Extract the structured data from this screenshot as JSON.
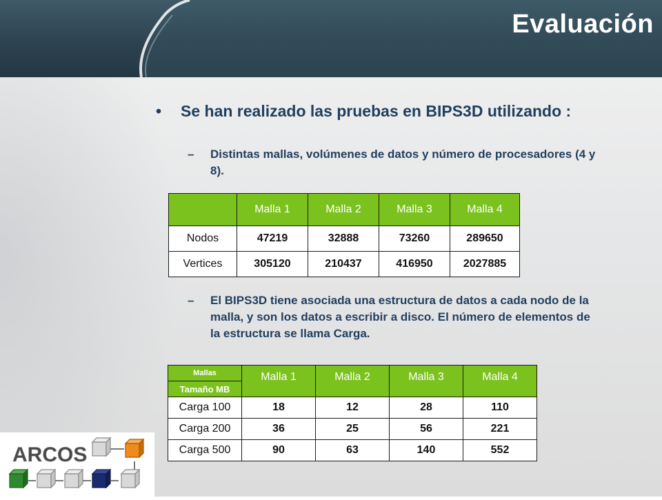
{
  "slide": {
    "title": "Evaluación",
    "bullet": "Se han realizado las pruebas en BIPS3D utilizando :",
    "sub1": "Distintas mallas, volúmenes de datos y número de procesadores (4 y 8).",
    "sub2": "El BIPS3D tiene asociada una estructura de datos a cada nodo de la malla, y son los datos a escribir a disco. El número de elementos de la estructura se llama Carga.",
    "bullet_glyph": "•",
    "dash_glyph": "–"
  },
  "table1": {
    "headers": [
      "",
      "Malla 1",
      "Malla 2",
      "Malla 3",
      "Malla 4"
    ],
    "rows": [
      {
        "label": "Nodos",
        "values": [
          "47219",
          "32888",
          "73260",
          "289650"
        ]
      },
      {
        "label": "Vertices",
        "values": [
          "305120",
          "210437",
          "416950",
          "2027885"
        ]
      }
    ]
  },
  "table2": {
    "corner_top": "Mallas",
    "corner_bottom": "Tamaño MB",
    "headers": [
      "Malla 1",
      "Malla 2",
      "Malla 3",
      "Malla 4"
    ],
    "rows": [
      {
        "label": "Carga 100",
        "values": [
          "18",
          "12",
          "28",
          "110"
        ]
      },
      {
        "label": "Carga 200",
        "values": [
          "36",
          "25",
          "56",
          "221"
        ]
      },
      {
        "label": "Carga 500",
        "values": [
          "90",
          "63",
          "140",
          "552"
        ]
      }
    ]
  },
  "logo": {
    "text": "ARCOS"
  },
  "colors": {
    "header": "#2d4350",
    "accent_green": "#7cc21e",
    "text_blue": "#1f3f5f",
    "logo_orange": "#f08a1c",
    "logo_green": "#2f8a2f",
    "logo_navy": "#1c2a6e"
  }
}
